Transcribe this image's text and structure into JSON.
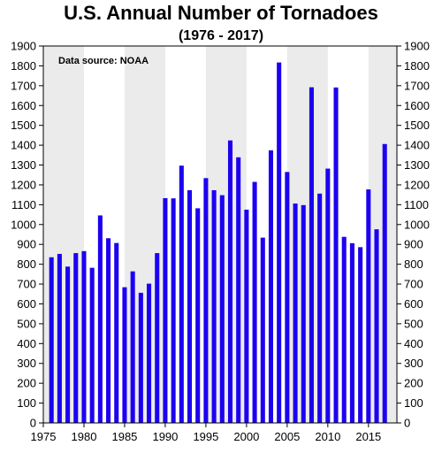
{
  "chart_data": {
    "type": "bar",
    "title": "U.S. Annual Number of Tornadoes",
    "subtitle": "(1976 - 2017)",
    "annotation": "Data source: NOAA",
    "xlabel": "",
    "ylabel": "",
    "ylim": [
      0,
      1900
    ],
    "y_ticks": [
      0,
      100,
      200,
      300,
      400,
      500,
      600,
      700,
      800,
      900,
      1000,
      1100,
      1200,
      1300,
      1400,
      1500,
      1600,
      1700,
      1800,
      1900
    ],
    "x_ticks": [
      1975,
      1980,
      1985,
      1990,
      1995,
      2000,
      2005,
      2010,
      2015
    ],
    "xlim": [
      1975,
      2018.5
    ],
    "shaded_bands": [
      [
        1975,
        1980
      ],
      [
        1985,
        1990
      ],
      [
        1995,
        2000
      ],
      [
        2005,
        2010
      ],
      [
        2015,
        2018.5
      ]
    ],
    "bar_color": "#1c00f0",
    "band_color": "#ebebeb",
    "grid": false,
    "x": [
      1976,
      1977,
      1978,
      1979,
      1980,
      1981,
      1982,
      1983,
      1984,
      1985,
      1986,
      1987,
      1988,
      1989,
      1990,
      1991,
      1992,
      1993,
      1994,
      1995,
      1996,
      1997,
      1998,
      1999,
      2000,
      2001,
      2002,
      2003,
      2004,
      2005,
      2006,
      2007,
      2008,
      2009,
      2010,
      2011,
      2012,
      2013,
      2014,
      2015,
      2016,
      2017
    ],
    "values": [
      835,
      852,
      788,
      856,
      866,
      782,
      1046,
      931,
      907,
      684,
      764,
      656,
      702,
      856,
      1133,
      1132,
      1297,
      1173,
      1082,
      1234,
      1173,
      1148,
      1424,
      1339,
      1075,
      1215,
      934,
      1374,
      1817,
      1265,
      1106,
      1098,
      1692,
      1156,
      1282,
      1691,
      938,
      906,
      886,
      1177,
      976,
      1406
    ]
  }
}
